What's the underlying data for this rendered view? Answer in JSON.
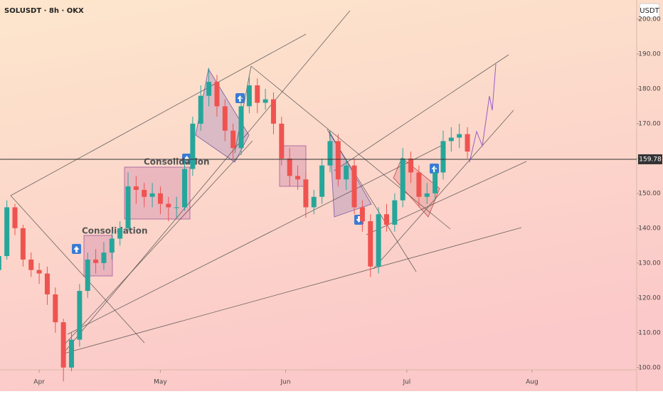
{
  "chart_data": {
    "type": "candlestick",
    "title": "SOLUSDT · 8h · OKX",
    "currency": "USDT",
    "annotations": [
      "Consolidation",
      "Consolidation"
    ],
    "price_line": {
      "value": 159.78,
      "label": "159.78"
    },
    "up_color": "#26a69a",
    "down_color": "#ef5350",
    "x": [
      -10,
      -8,
      -6,
      -4,
      -2,
      0,
      2,
      4,
      6,
      8,
      10,
      12,
      14,
      16,
      18,
      20,
      22,
      24,
      26,
      28,
      30,
      32,
      34,
      36,
      38,
      40,
      42,
      44,
      46,
      48,
      50,
      52,
      54,
      56,
      58,
      60,
      62,
      64,
      66,
      68,
      70,
      72,
      74,
      76,
      78,
      80,
      82,
      84,
      86,
      88,
      90,
      92,
      94,
      96,
      98,
      100,
      102,
      104,
      106
    ],
    "open": [
      128,
      132,
      146,
      140,
      131,
      128,
      127,
      121,
      113,
      100,
      108,
      122,
      131,
      130,
      133,
      137,
      140,
      152,
      151,
      149,
      150,
      147,
      146,
      146,
      157,
      170,
      178,
      182,
      175,
      168,
      163,
      175,
      181,
      176,
      177,
      170,
      160,
      155,
      154,
      146,
      149,
      158,
      165,
      154,
      158,
      146,
      142,
      129,
      144,
      141,
      148,
      160,
      156,
      149,
      150,
      156,
      165,
      166,
      167
    ],
    "high": [
      134,
      148,
      147,
      141,
      133,
      130,
      129,
      123,
      114,
      110,
      124,
      133,
      134,
      136,
      139,
      142,
      156,
      155,
      153,
      153,
      152,
      149,
      149,
      160,
      172,
      181,
      186,
      184,
      177,
      170,
      178,
      184,
      183,
      180,
      179,
      172,
      163,
      158,
      156,
      151,
      160,
      168,
      167,
      160,
      160,
      148,
      144,
      146,
      147,
      150,
      163,
      162,
      158,
      153,
      158,
      168,
      169,
      170,
      169
    ],
    "low": [
      126,
      131,
      138,
      129,
      126,
      124,
      118,
      110,
      96,
      99,
      106,
      120,
      127,
      128,
      131,
      135,
      139,
      147,
      146,
      146,
      144,
      142,
      143,
      145,
      155,
      168,
      175,
      172,
      165,
      160,
      161,
      173,
      173,
      174,
      167,
      158,
      152,
      151,
      143,
      144,
      147,
      156,
      152,
      151,
      144,
      139,
      126,
      127,
      139,
      139,
      146,
      153,
      146,
      147,
      148,
      154,
      162,
      163,
      160
    ],
    "close": [
      132,
      146,
      140,
      131,
      128,
      127,
      121,
      113,
      100,
      108,
      122,
      131,
      130,
      133,
      137,
      140,
      152,
      151,
      149,
      150,
      147,
      146,
      146,
      157,
      170,
      178,
      182,
      175,
      168,
      163,
      175,
      181,
      176,
      177,
      170,
      160,
      155,
      154,
      146,
      149,
      158,
      165,
      154,
      158,
      146,
      142,
      129,
      144,
      141,
      148,
      160,
      156,
      149,
      150,
      156,
      165,
      166,
      167,
      162
    ],
    "xlim": [
      -9.7,
      147.9
    ],
    "xticks": [
      {
        "value": 0,
        "label": "Apr"
      },
      {
        "value": 30,
        "label": "May"
      },
      {
        "value": 61,
        "label": "Jun"
      },
      {
        "value": 91,
        "label": "Jul"
      },
      {
        "value": 122,
        "label": "Aug"
      }
    ],
    "ylim": [
      99.35,
      205.5
    ],
    "yticks": [
      {
        "value": 100,
        "label": "100.00"
      },
      {
        "value": 110,
        "label": "110.00"
      },
      {
        "value": 120,
        "label": "120.00"
      },
      {
        "value": 130,
        "label": "130.00"
      },
      {
        "value": 140,
        "label": "140.00"
      },
      {
        "value": 150,
        "label": "150.00"
      },
      {
        "value": 160,
        "label": "160.00"
      },
      {
        "value": 170,
        "label": "170.00"
      },
      {
        "value": 180,
        "label": "180.00"
      },
      {
        "value": 190,
        "label": "190.00"
      },
      {
        "value": 200,
        "label": "200.00"
      }
    ]
  }
}
